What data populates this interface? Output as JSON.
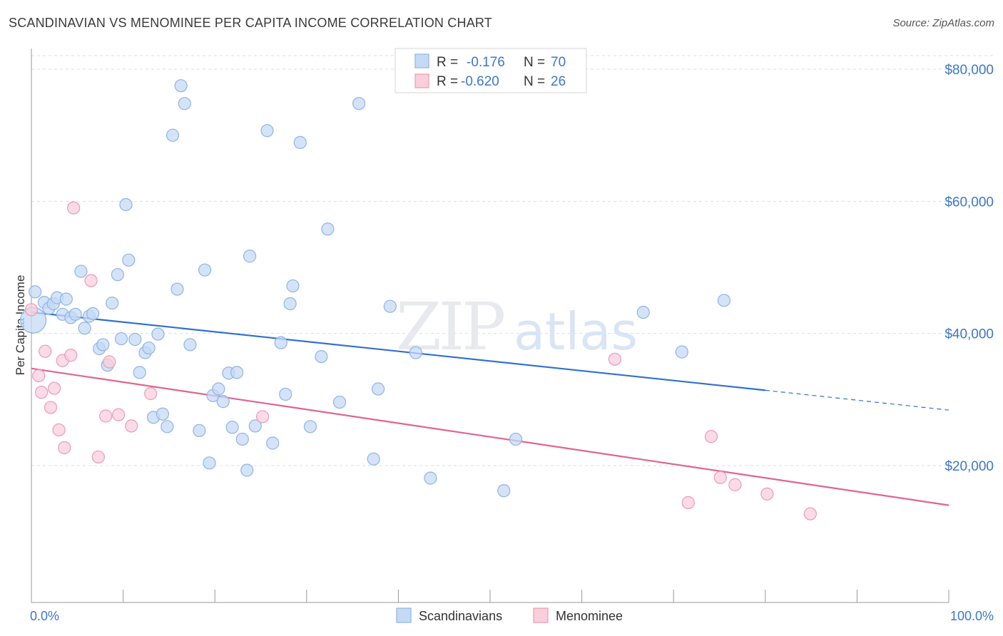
{
  "header": {
    "title": "SCANDINAVIAN VS MENOMINEE PER CAPITA INCOME CORRELATION CHART",
    "source": "Source: ZipAtlas.com"
  },
  "watermark": {
    "zip": "ZIP",
    "atlas": "atlas"
  },
  "colors": {
    "blue_fill": "#c5daf5",
    "blue_stroke": "#8fb4e4",
    "blue_line": "#2f6fd1",
    "pink_fill": "#f9cfdc",
    "pink_stroke": "#ec9ab4",
    "pink_line": "#e0648f",
    "tick_text": "#3d77c8",
    "grid": "#dddddd"
  },
  "legend": {
    "rows": [
      {
        "r_label": "R =",
        "r_value": "-0.176",
        "n_label": "N =",
        "n_value": "70"
      },
      {
        "r_label": "R =",
        "r_value": "-0.620",
        "n_label": "N =",
        "n_value": "26"
      }
    ]
  },
  "bottom_legend": [
    "Scandinavians",
    "Menominee"
  ],
  "chart_data": {
    "type": "scatter",
    "title": "SCANDINAVIAN VS MENOMINEE PER CAPITA INCOME CORRELATION CHART",
    "ylabel": "Per Capita Income",
    "xlabel": "",
    "xlim": [
      0,
      100
    ],
    "ylim": [
      0,
      84000
    ],
    "x_tick_labels": [
      {
        "x": 0,
        "label": "0.0%"
      },
      {
        "x": 100,
        "label": "100.0%"
      }
    ],
    "y_ticks": [
      {
        "y": 20000,
        "label": "$20,000"
      },
      {
        "y": 40000,
        "label": "$40,000"
      },
      {
        "y": 60000,
        "label": "$60,000"
      },
      {
        "y": 80000,
        "label": "$80,000"
      }
    ],
    "grid": true,
    "legend_position": "top-center",
    "series": [
      {
        "name": "Scandinavians",
        "r": -0.176,
        "n": 70,
        "trend": {
          "x_start": 0,
          "y_start": 43200,
          "x_solid_end": 80,
          "y_solid_end": 31400,
          "x_end": 100,
          "y_end": 28400
        },
        "points": [
          [
            0.2,
            42000
          ],
          [
            0.4,
            46300
          ],
          [
            1.4,
            44700
          ],
          [
            1.9,
            43800
          ],
          [
            2.4,
            44500
          ],
          [
            2.8,
            45400
          ],
          [
            3.4,
            42900
          ],
          [
            3.8,
            45200
          ],
          [
            4.3,
            42400
          ],
          [
            4.8,
            42900
          ],
          [
            5.4,
            49400
          ],
          [
            5.8,
            40800
          ],
          [
            6.3,
            42600
          ],
          [
            6.7,
            43000
          ],
          [
            7.4,
            37700
          ],
          [
            7.8,
            38300
          ],
          [
            8.3,
            35200
          ],
          [
            8.8,
            44600
          ],
          [
            9.4,
            48900
          ],
          [
            9.8,
            39200
          ],
          [
            10.3,
            59500
          ],
          [
            10.6,
            51100
          ],
          [
            11.3,
            39100
          ],
          [
            11.8,
            34100
          ],
          [
            12.4,
            37100
          ],
          [
            12.8,
            37800
          ],
          [
            13.3,
            27300
          ],
          [
            13.8,
            39900
          ],
          [
            14.3,
            27800
          ],
          [
            14.8,
            25900
          ],
          [
            15.4,
            70000
          ],
          [
            15.9,
            46700
          ],
          [
            16.3,
            77500
          ],
          [
            16.7,
            74800
          ],
          [
            17.3,
            38300
          ],
          [
            18.3,
            25300
          ],
          [
            18.9,
            49600
          ],
          [
            19.4,
            20400
          ],
          [
            19.8,
            30600
          ],
          [
            20.4,
            31600
          ],
          [
            20.9,
            29700
          ],
          [
            21.5,
            34000
          ],
          [
            21.9,
            25800
          ],
          [
            22.4,
            34100
          ],
          [
            23.0,
            24000
          ],
          [
            23.5,
            19300
          ],
          [
            23.8,
            51700
          ],
          [
            24.4,
            26000
          ],
          [
            25.7,
            70700
          ],
          [
            26.3,
            23400
          ],
          [
            27.2,
            38600
          ],
          [
            27.7,
            30800
          ],
          [
            28.2,
            44500
          ],
          [
            28.5,
            47200
          ],
          [
            29.3,
            68900
          ],
          [
            30.4,
            25900
          ],
          [
            31.6,
            36500
          ],
          [
            32.3,
            55800
          ],
          [
            33.6,
            29600
          ],
          [
            35.7,
            74800
          ],
          [
            37.3,
            21000
          ],
          [
            37.8,
            31600
          ],
          [
            39.1,
            44100
          ],
          [
            41.9,
            37100
          ],
          [
            43.5,
            18100
          ],
          [
            51.5,
            16200
          ],
          [
            52.8,
            24000
          ],
          [
            66.7,
            43200
          ],
          [
            70.9,
            37200
          ],
          [
            75.5,
            45000
          ]
        ]
      },
      {
        "name": "Menominee",
        "r": -0.62,
        "n": 26,
        "trend": {
          "x_start": 0,
          "y_start": 34700,
          "x_end": 100,
          "y_end": 14000
        },
        "points": [
          [
            0.0,
            43600
          ],
          [
            0.8,
            33600
          ],
          [
            1.1,
            31100
          ],
          [
            1.5,
            37300
          ],
          [
            2.1,
            28800
          ],
          [
            2.5,
            31700
          ],
          [
            3.0,
            25400
          ],
          [
            3.4,
            35900
          ],
          [
            3.6,
            22700
          ],
          [
            4.3,
            36700
          ],
          [
            4.6,
            59000
          ],
          [
            6.5,
            48000
          ],
          [
            7.3,
            21300
          ],
          [
            8.1,
            27500
          ],
          [
            8.5,
            35700
          ],
          [
            9.5,
            27700
          ],
          [
            10.9,
            26000
          ],
          [
            13.0,
            30900
          ],
          [
            25.2,
            27400
          ],
          [
            63.6,
            36100
          ],
          [
            71.6,
            14400
          ],
          [
            74.1,
            24400
          ],
          [
            75.1,
            18200
          ],
          [
            76.7,
            17100
          ],
          [
            80.2,
            15700
          ],
          [
            84.9,
            12700
          ]
        ]
      }
    ]
  }
}
